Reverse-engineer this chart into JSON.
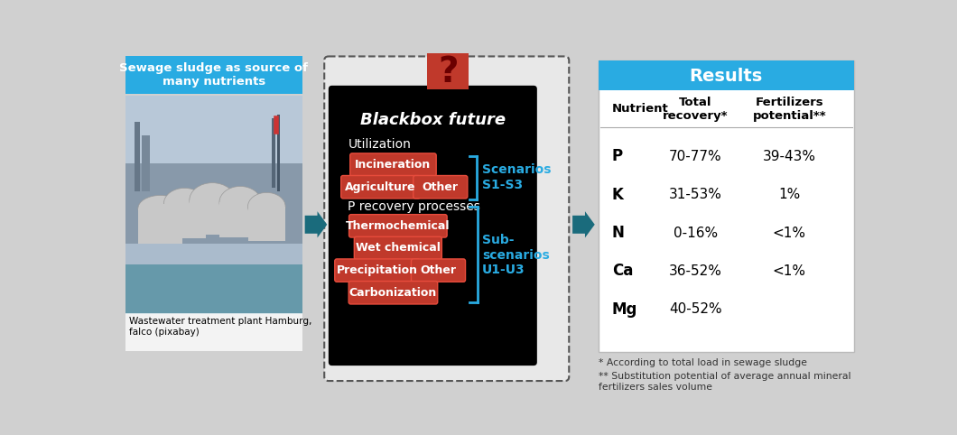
{
  "bg_color": "#d0d0d0",
  "title_blue": "#29ABE2",
  "dark_teal": "#1A6B7C",
  "red_box": "#C0392B",
  "red_box_light": "#E74C3C",
  "cyan_text": "#29ABE2",
  "left_title": "Sewage sludge as source of\nmany nutrients",
  "left_caption": "Wastewater treatment plant Hamburg,\nfalco (pixabay)",
  "blackbox_title": "Blackbox future",
  "utilization_label": "Utilization",
  "p_recovery_label": "P recovery processes",
  "scenarios_label": "Scenarios\nS1-S3",
  "subscenarios_label": "Sub-\nscenarios\nU1-U3",
  "results_title": "Results",
  "table_headers": [
    "Nutrient",
    "Total\nrecovery*",
    "Fertilizers\npotential**"
  ],
  "table_rows": [
    [
      "P",
      "70-77%",
      "39-43%"
    ],
    [
      "K",
      "31-53%",
      "1%"
    ],
    [
      "N",
      "0-16%",
      "<1%"
    ],
    [
      "Ca",
      "36-52%",
      "<1%"
    ],
    [
      "Mg",
      "40-52%",
      ""
    ]
  ],
  "footnote1": "* According to total load in sewage sludge",
  "footnote2": "** Substitution potential of average annual mineral\nfertilizers sales volume"
}
